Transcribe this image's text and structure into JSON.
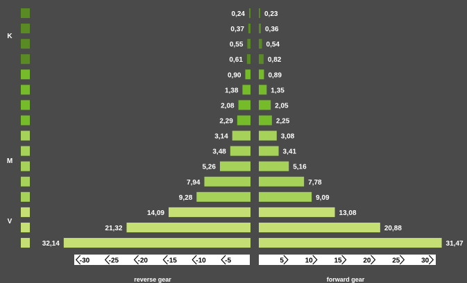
{
  "chart_data": {
    "type": "bar",
    "orientation": "horizontal-mirrored",
    "group_labels": [
      "K",
      "M",
      "V"
    ],
    "left_axis_title": "reverse gear",
    "right_axis_title": "forward gear",
    "left_ticks": [
      "-30",
      "-25",
      "-20",
      "-15",
      "-10",
      "-5"
    ],
    "right_ticks": [
      "5",
      "10",
      "15",
      "20",
      "25",
      "30"
    ],
    "xlim": [
      0,
      33
    ],
    "series": [
      {
        "name": "reverse gear",
        "values": [
          0.24,
          0.37,
          0.55,
          0.61,
          0.9,
          1.38,
          2.08,
          2.29,
          3.14,
          3.48,
          5.26,
          7.94,
          9.28,
          14.09,
          21.32,
          32.14
        ],
        "labels": [
          "0,24",
          "0,37",
          "0,55",
          "0,61",
          "0,90",
          "1,38",
          "2,08",
          "2,29",
          "3,14",
          "3,48",
          "5,26",
          "7,94",
          "9,28",
          "14,09",
          "21,32",
          "32,14"
        ]
      },
      {
        "name": "forward gear",
        "values": [
          0.23,
          0.36,
          0.54,
          0.82,
          0.89,
          1.35,
          2.05,
          2.25,
          3.08,
          3.41,
          5.16,
          7.78,
          9.09,
          13.08,
          20.88,
          31.47
        ],
        "labels": [
          "0,23",
          "0,36",
          "0,54",
          "0,82",
          "0,89",
          "1,35",
          "2,05",
          "2,25",
          "3,08",
          "3,41",
          "5,16",
          "7,78",
          "9,09",
          "13,08",
          "20,88",
          "31,47"
        ]
      }
    ],
    "gear_groups": [
      "K",
      "K",
      "K",
      "K",
      "K",
      "K",
      "K",
      "K",
      "M",
      "M",
      "M",
      "M",
      "M",
      "V",
      "V",
      "V"
    ],
    "colors": {
      "background": "#4a4a4a",
      "K_dark": "#5a8a24",
      "K_light": "#76bb2a",
      "M": "#a7d25a",
      "V": "#c5df74"
    }
  }
}
